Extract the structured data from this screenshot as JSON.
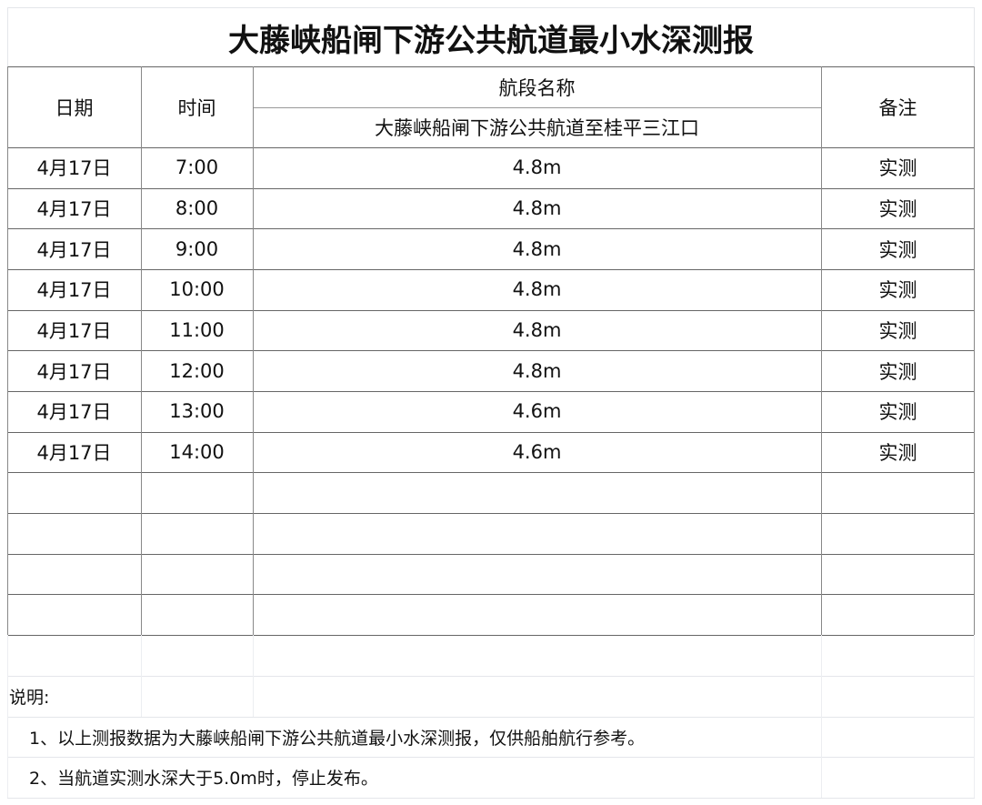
{
  "title": "大藤峡船闸下游公共航道最小水深测报",
  "header": {
    "date": "日期",
    "time": "时间",
    "section_name": "航段名称",
    "section": "大藤峡船闸下游公共航道至桂平三江口",
    "remark": "备注"
  },
  "rows": [
    {
      "date": "4月17日",
      "time": "7:00",
      "depth": "4.8m",
      "remark": "实测"
    },
    {
      "date": "4月17日",
      "time": "8:00",
      "depth": "4.8m",
      "remark": "实测"
    },
    {
      "date": "4月17日",
      "time": "9:00",
      "depth": "4.8m",
      "remark": "实测"
    },
    {
      "date": "4月17日",
      "time": "10:00",
      "depth": "4.8m",
      "remark": "实测"
    },
    {
      "date": "4月17日",
      "time": "11:00",
      "depth": "4.8m",
      "remark": "实测"
    },
    {
      "date": "4月17日",
      "time": "12:00",
      "depth": "4.8m",
      "remark": "实测"
    },
    {
      "date": "4月17日",
      "time": "13:00",
      "depth": "4.6m",
      "remark": "实测"
    },
    {
      "date": "4月17日",
      "time": "14:00",
      "depth": "4.6m",
      "remark": "实测"
    },
    {
      "date": "",
      "time": "",
      "depth": "",
      "remark": ""
    },
    {
      "date": "",
      "time": "",
      "depth": "",
      "remark": ""
    },
    {
      "date": "",
      "time": "",
      "depth": "",
      "remark": ""
    },
    {
      "date": "",
      "time": "",
      "depth": "",
      "remark": ""
    }
  ],
  "notes": {
    "label": "说明:",
    "items": [
      "1、以上测报数据为大藤峡船闸下游公共航道最小水深测报，仅供船舶航行参考。",
      "2、当航道实测水深大于5.0m时，停止发布。"
    ]
  }
}
